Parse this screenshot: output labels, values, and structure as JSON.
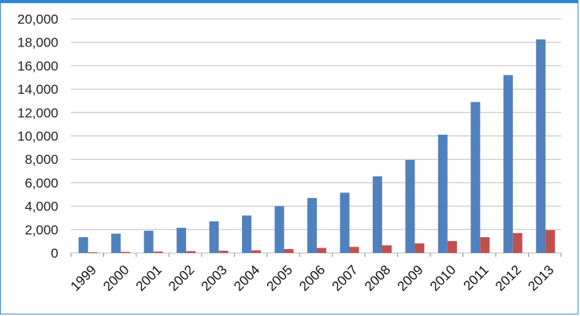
{
  "chart_data": {
    "type": "bar",
    "categories": [
      "1999",
      "2000",
      "2001",
      "2002",
      "2003",
      "2004",
      "2005",
      "2006",
      "2007",
      "2008",
      "2009",
      "2010",
      "2011",
      "2012",
      "2013"
    ],
    "series": [
      {
        "color": "#4f81bd",
        "values": [
          1350,
          1650,
          1900,
          2150,
          2700,
          3200,
          4000,
          4700,
          5150,
          6550,
          7950,
          10100,
          12900,
          15200,
          18250
        ]
      },
      {
        "color": "#c0504d",
        "values": [
          60,
          90,
          120,
          160,
          190,
          230,
          330,
          430,
          520,
          650,
          820,
          1020,
          1350,
          1700,
          1950
        ]
      }
    ],
    "yticks": [
      "0",
      "2,000",
      "4,000",
      "6,000",
      "8,000",
      "10,000",
      "12,000",
      "14,000",
      "16,000",
      "18,000",
      "20,000"
    ],
    "ylim": [
      0,
      20000
    ],
    "grid": true,
    "title": "",
    "xlabel": "",
    "ylabel": ""
  }
}
